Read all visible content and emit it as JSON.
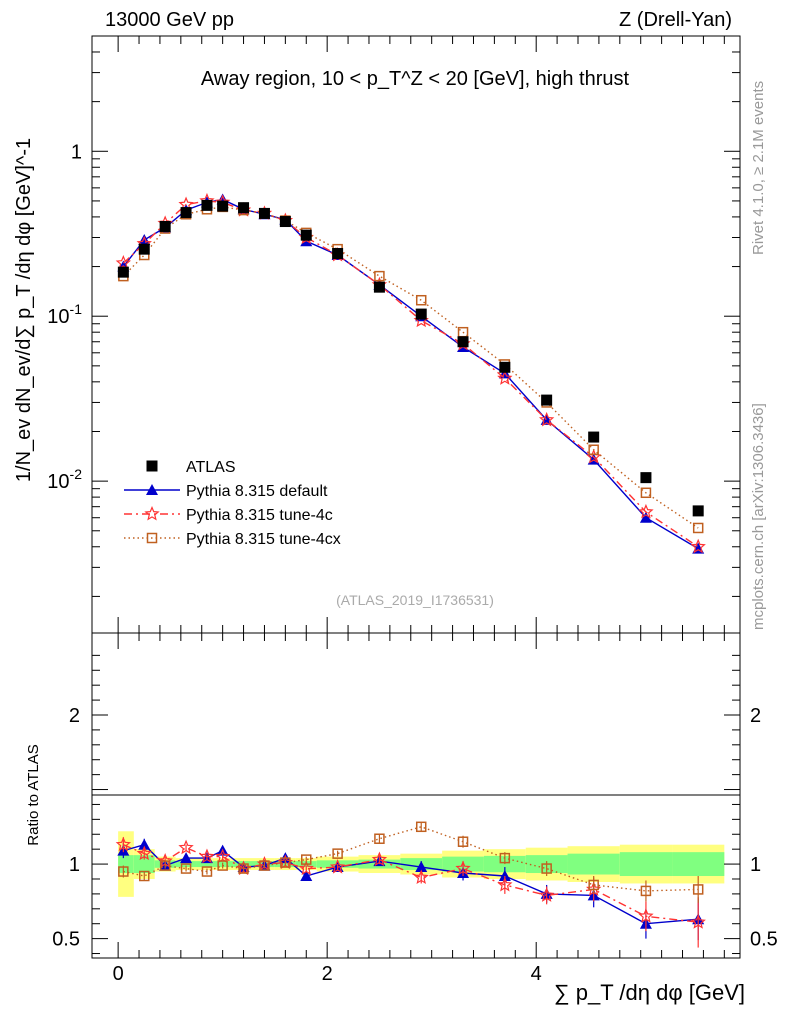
{
  "header": {
    "left": "13000 GeV pp",
    "right": "Z (Drell-Yan)"
  },
  "side": {
    "rivet": "Rivet 4.1.0, ≥ 2.1M events",
    "mcplots": "mcplots.cern.ch [arXiv:1306.3436]"
  },
  "chart_data": {
    "type": "scatter",
    "title": "Away region, 10 < p_T^Z < 20 [GeV], high thrust",
    "analysis_id": "(ATLAS_2019_I1736531)",
    "xlabel": "∑ p_T /dη dφ [GeV]",
    "ylabel": "1/N_ev dN_ev/d∑ p_T /dη dφ [GeV]^-1",
    "ratio_ylabel": "Ratio to ATLAS",
    "xlim": [
      -0.25,
      5.95
    ],
    "ylim": [
      0.0012,
      5.0
    ],
    "ratio_ylim": [
      0.37,
      2.55
    ],
    "xticks": [
      "0",
      "2",
      "4"
    ],
    "yticks": [
      "10^-2",
      "10^-1",
      "1"
    ],
    "ratio_yticks": [
      "0.5",
      "1",
      "2"
    ],
    "x": [
      0.05,
      0.25,
      0.45,
      0.65,
      0.85,
      1.0,
      1.2,
      1.4,
      1.6,
      1.8,
      2.1,
      2.5,
      2.9,
      3.3,
      3.7,
      4.1,
      4.55,
      5.05,
      5.55
    ],
    "band_edges": [
      0.0,
      0.15,
      0.35,
      0.55,
      0.75,
      0.9,
      1.1,
      1.3,
      1.5,
      1.7,
      1.9,
      2.3,
      2.7,
      3.1,
      3.5,
      3.9,
      4.3,
      4.8,
      5.3,
      5.8
    ],
    "band_inner": [
      0.06,
      0.06,
      0.025,
      0.02,
      0.02,
      0.02,
      0.02,
      0.02,
      0.02,
      0.02,
      0.025,
      0.03,
      0.04,
      0.05,
      0.055,
      0.06,
      0.07,
      0.08,
      0.08
    ],
    "band_outer": [
      0.22,
      0.1,
      0.05,
      0.04,
      0.04,
      0.04,
      0.04,
      0.04,
      0.04,
      0.04,
      0.05,
      0.06,
      0.07,
      0.09,
      0.1,
      0.11,
      0.12,
      0.13,
      0.13
    ],
    "series": [
      {
        "name": "ATLAS",
        "color": "#000000",
        "marker": "square-filled",
        "values": [
          0.185,
          0.255,
          0.35,
          0.425,
          0.47,
          0.465,
          0.455,
          0.42,
          0.375,
          0.31,
          0.24,
          0.15,
          0.103,
          0.07,
          0.049,
          0.031,
          0.0185,
          0.0105,
          0.0066
        ]
      },
      {
        "name": "Pythia 8.315 default",
        "color": "#0000cc",
        "marker": "triangle-filled",
        "values": [
          0.2,
          0.29,
          0.345,
          0.44,
          0.49,
          0.51,
          0.445,
          0.415,
          0.385,
          0.285,
          0.235,
          0.155,
          0.1,
          0.065,
          0.045,
          0.0235,
          0.0135,
          0.006,
          0.0039
        ],
        "ratio": [
          1.09,
          1.13,
          0.99,
          1.04,
          1.04,
          1.09,
          0.98,
          0.99,
          1.04,
          0.92,
          0.98,
          1.02,
          0.98,
          0.94,
          0.92,
          0.8,
          0.79,
          0.6,
          0.63
        ],
        "ratio_err": [
          0.05,
          0.04,
          0.03,
          0.02,
          0.02,
          0.02,
          0.02,
          0.02,
          0.02,
          0.02,
          0.02,
          0.03,
          0.04,
          0.05,
          0.06,
          0.06,
          0.08,
          0.1,
          0.14
        ]
      },
      {
        "name": "Pythia 8.315 tune-4c",
        "color": "#ff3333",
        "marker": "star-open",
        "values": [
          0.21,
          0.275,
          0.365,
          0.475,
          0.5,
          0.49,
          0.44,
          0.42,
          0.38,
          0.3,
          0.235,
          0.155,
          0.094,
          0.068,
          0.042,
          0.0235,
          0.014,
          0.0065,
          0.004
        ],
        "ratio": [
          1.13,
          1.07,
          1.02,
          1.11,
          1.05,
          1.05,
          0.97,
          1.0,
          1.01,
          0.97,
          0.98,
          1.03,
          0.91,
          0.97,
          0.86,
          0.79,
          0.83,
          0.65,
          0.61
        ],
        "ratio_err": [
          0.05,
          0.04,
          0.03,
          0.02,
          0.02,
          0.02,
          0.02,
          0.02,
          0.02,
          0.02,
          0.02,
          0.03,
          0.04,
          0.05,
          0.06,
          0.06,
          0.08,
          0.1,
          0.17
        ]
      },
      {
        "name": "Pythia 8.315 tune-4cx",
        "color": "#c06020",
        "marker": "square-open",
        "values": [
          0.175,
          0.235,
          0.34,
          0.415,
          0.445,
          0.46,
          0.44,
          0.42,
          0.38,
          0.32,
          0.255,
          0.175,
          0.125,
          0.08,
          0.051,
          0.03,
          0.0155,
          0.0085,
          0.0052
        ],
        "ratio": [
          0.95,
          0.92,
          0.99,
          0.97,
          0.95,
          0.99,
          0.97,
          0.99,
          1.01,
          1.03,
          1.07,
          1.17,
          1.25,
          1.15,
          1.04,
          0.97,
          0.86,
          0.82,
          0.83
        ],
        "ratio_err": [
          0.04,
          0.03,
          0.02,
          0.02,
          0.02,
          0.02,
          0.02,
          0.02,
          0.02,
          0.02,
          0.02,
          0.03,
          0.03,
          0.04,
          0.04,
          0.05,
          0.06,
          0.07,
          0.09
        ]
      }
    ]
  }
}
